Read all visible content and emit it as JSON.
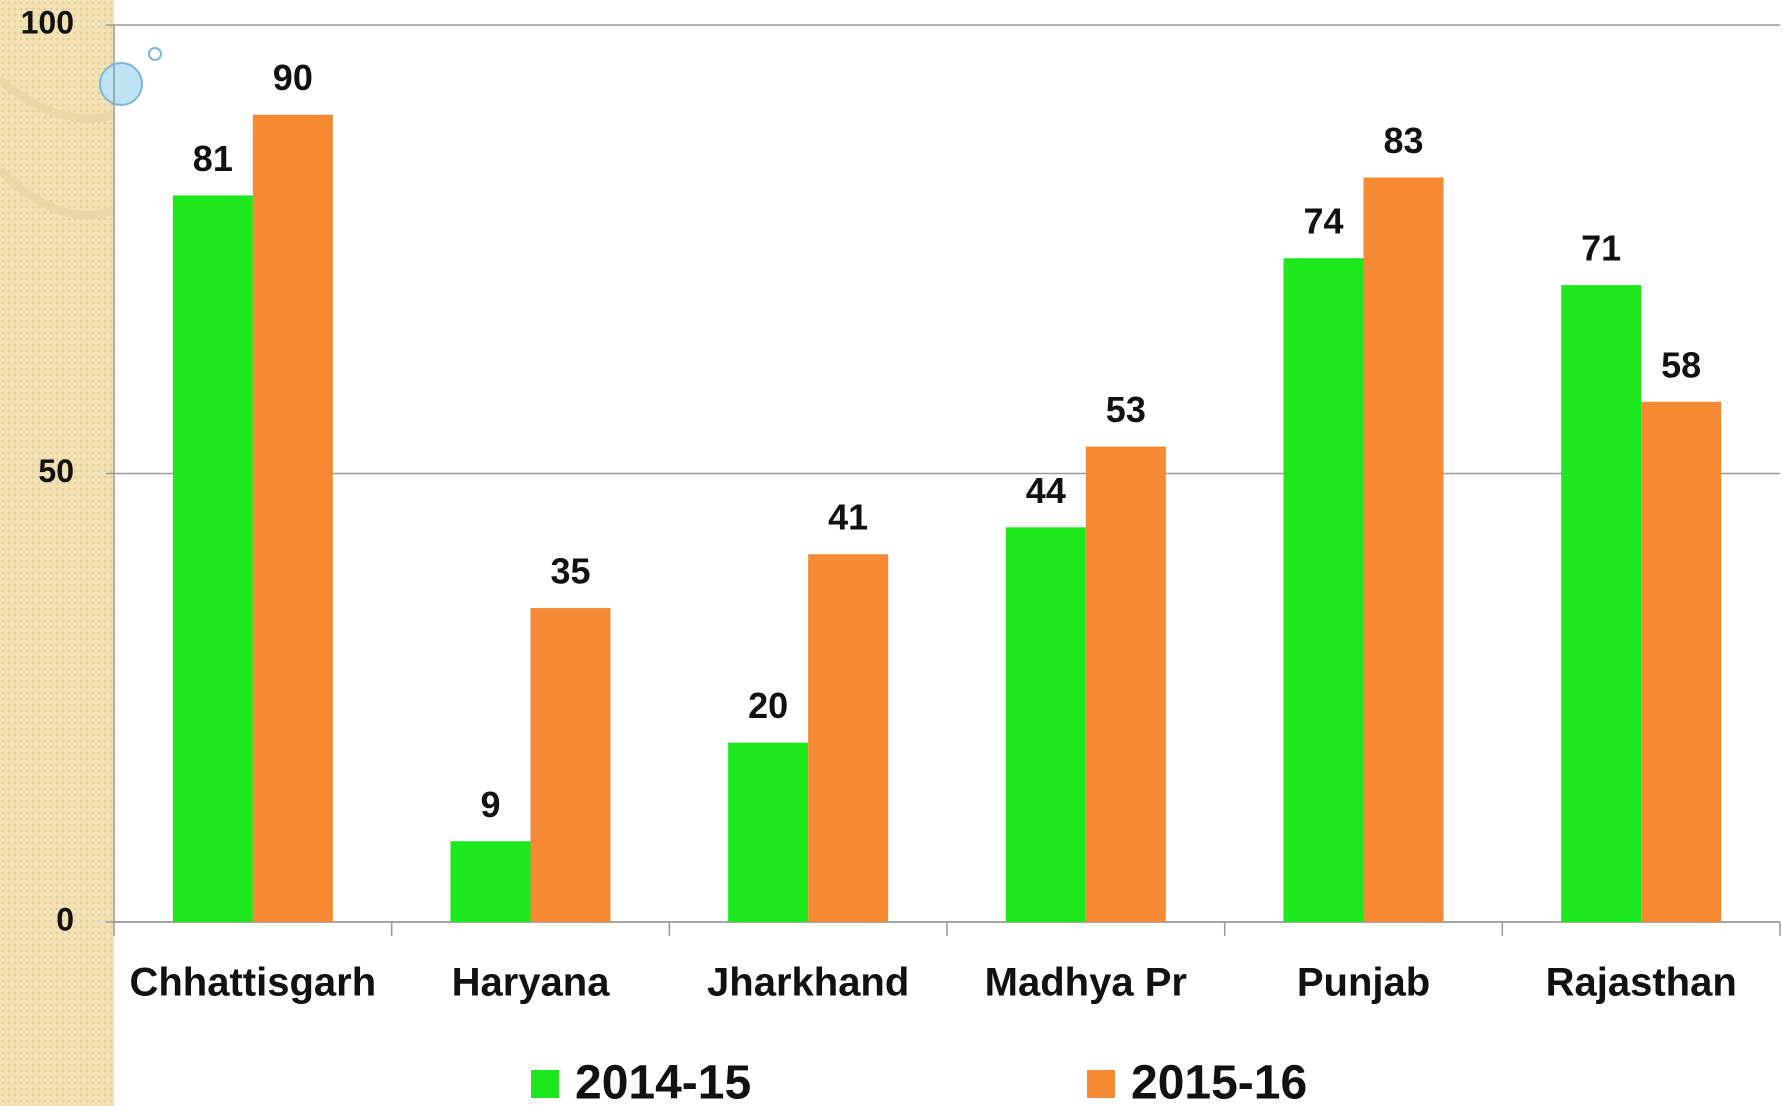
{
  "chart_data": {
    "type": "bar",
    "categories": [
      "Chhattisgarh",
      "Haryana",
      "Jharkhand",
      "Madhya Pr",
      "Punjab",
      "Rajasthan"
    ],
    "series": [
      {
        "name": "2014-15",
        "color": "#1de81d",
        "values": [
          81,
          9,
          20,
          44,
          74,
          71
        ]
      },
      {
        "name": "2015-16",
        "color": "#f68934",
        "values": [
          90,
          35,
          41,
          53,
          83,
          58
        ]
      }
    ],
    "ylim": [
      0,
      100
    ],
    "yticks": [
      0,
      50,
      100
    ],
    "grid": true,
    "legend": "bottom"
  }
}
